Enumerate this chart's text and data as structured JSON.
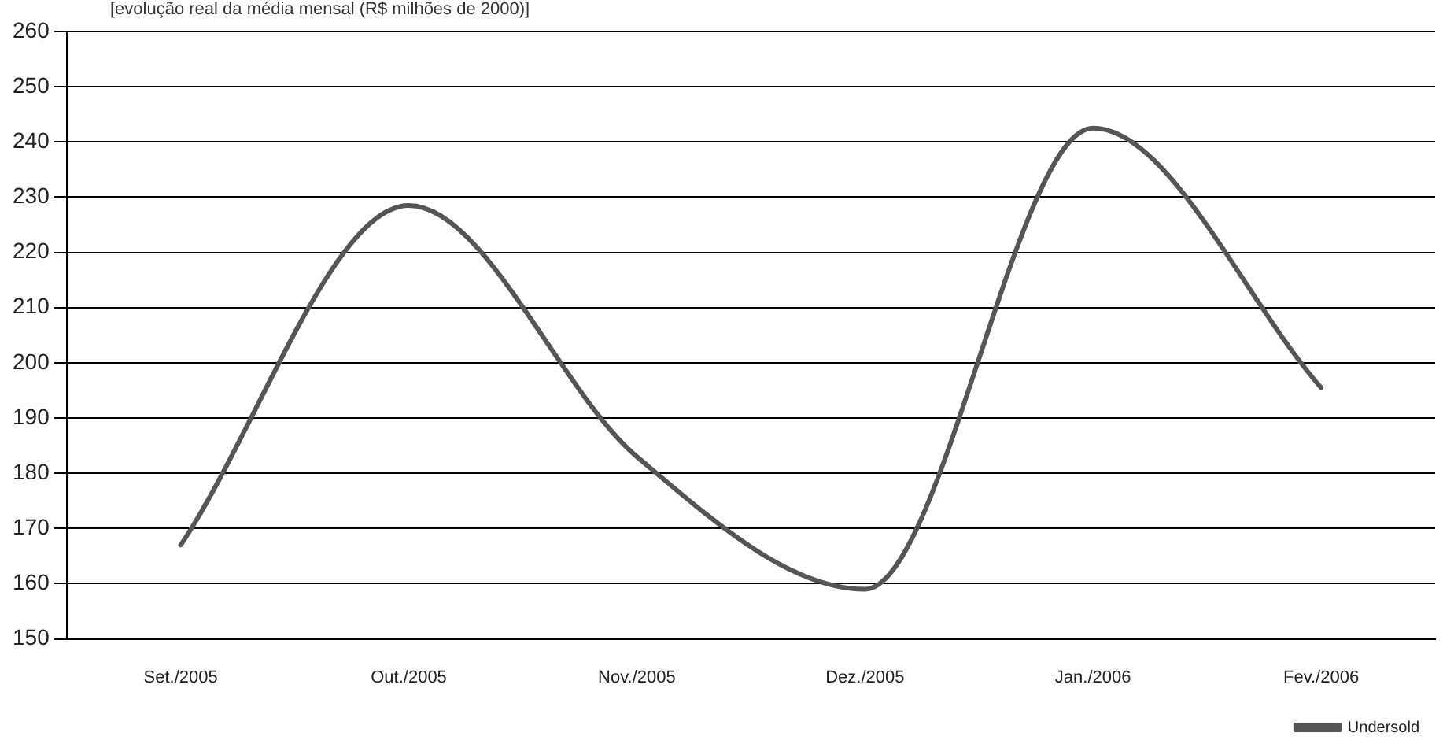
{
  "chart_data": {
    "type": "line",
    "title": "[evolução real da média mensal (R$ milhões de 2000)]",
    "categories": [
      "Set./2005",
      "Out./2005",
      "Nov./2005",
      "Dez./2005",
      "Jan./2006",
      "Fev./2006"
    ],
    "series": [
      {
        "name": "Undersold",
        "color": "#555555",
        "values": [
          167,
          228.5,
          183,
          159,
          242.5,
          195.5
        ]
      }
    ],
    "ylim": [
      150,
      260
    ],
    "yticks": [
      150,
      160,
      170,
      180,
      190,
      200,
      210,
      220,
      230,
      240,
      250,
      260
    ],
    "grid": "y",
    "legend": "bottom right",
    "marker": "none",
    "line_style": "solid"
  }
}
